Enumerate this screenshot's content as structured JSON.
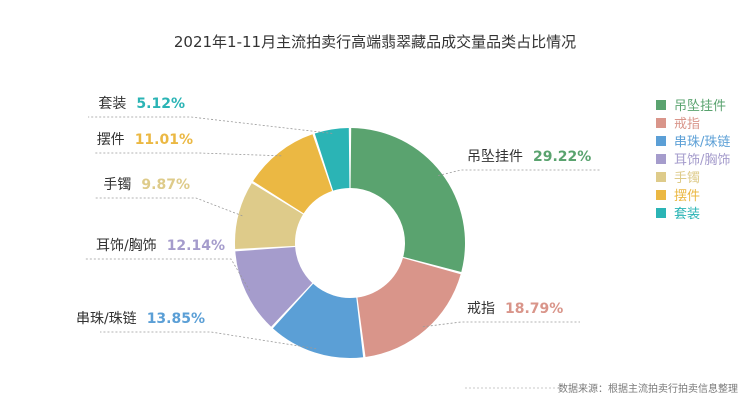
{
  "chart_data": {
    "type": "pie",
    "variant": "donut",
    "title": "2021年1-11月主流拍卖行高端翡翠藏品成交量品类占比情况",
    "categories": [
      "吊坠挂件",
      "戒指",
      "串珠/珠链",
      "耳饰/胸饰",
      "手镯",
      "摆件",
      "套装"
    ],
    "values": [
      29.22,
      18.79,
      13.85,
      12.14,
      9.87,
      11.01,
      5.12
    ],
    "value_labels": [
      "29.22%",
      "18.79%",
      "13.85%",
      "12.14%",
      "9.87%",
      "11.01%",
      "5.12%"
    ],
    "colors": [
      "#5aa36f",
      "#d9958a",
      "#5b9fd6",
      "#a59ccc",
      "#decb8a",
      "#ebb843",
      "#2bb4b5"
    ],
    "legend": {
      "position": "right",
      "order": [
        "吊坠挂件",
        "戒指",
        "串珠/珠链",
        "耳饰/胸饰",
        "手镯",
        "摆件",
        "套装"
      ]
    },
    "source_text": "数据来源：根据主流拍卖行拍卖信息整理"
  }
}
